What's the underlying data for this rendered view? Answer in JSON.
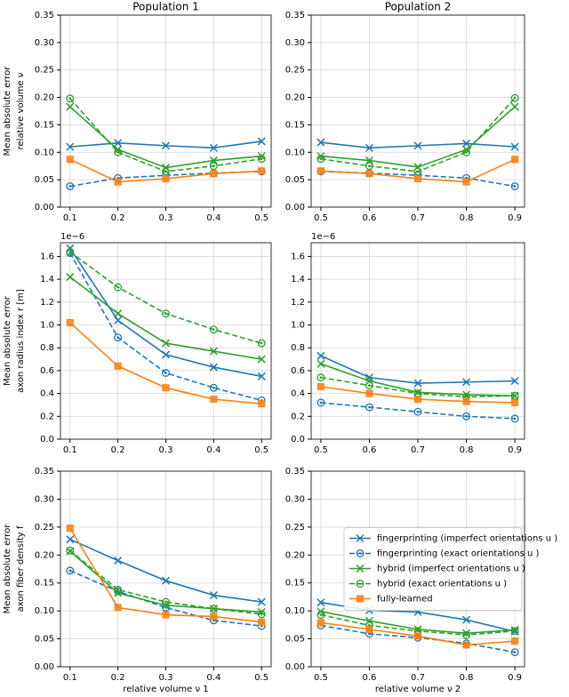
{
  "chart_data": [
    {
      "type": "line",
      "title": "Population 1",
      "ylabel": [
        "Mean absolute error",
        "relative volume ν"
      ],
      "x": [
        0.1,
        0.2,
        0.3,
        0.4,
        0.5
      ],
      "xlim": [
        0.08,
        0.52
      ],
      "xticks": [
        0.1,
        0.2,
        0.3,
        0.4,
        0.5
      ],
      "ylim": [
        0,
        0.35
      ],
      "yticks": [
        {
          "value": 0,
          "label": "0.00"
        },
        0.05,
        {
          "value": 0.1,
          "label": "0.10"
        },
        0.15,
        {
          "value": 0.2,
          "label": "0.20"
        },
        0.25,
        {
          "value": 0.3,
          "label": "0.30"
        },
        0.35
      ],
      "grid": true,
      "series": [
        {
          "color": "#1f77b4",
          "dashed": false,
          "marker": "x",
          "values": [
            0.11,
            0.117,
            0.112,
            0.108,
            0.12
          ]
        },
        {
          "color": "#1f77b4",
          "dashed": true,
          "marker": "o",
          "values": [
            0.038,
            0.053,
            0.058,
            0.062,
            0.065
          ]
        },
        {
          "color": "#2ca02c",
          "dashed": false,
          "marker": "x",
          "values": [
            0.183,
            0.105,
            0.072,
            0.085,
            0.093
          ]
        },
        {
          "color": "#2ca02c",
          "dashed": true,
          "marker": "o",
          "values": [
            0.198,
            0.1,
            0.065,
            0.075,
            0.088
          ]
        },
        {
          "color": "#ff7f0e",
          "dashed": false,
          "marker": "s",
          "values": [
            0.087,
            0.046,
            0.052,
            0.061,
            0.066
          ]
        }
      ]
    },
    {
      "type": "line",
      "title": "Population 2",
      "x": [
        0.5,
        0.6,
        0.7,
        0.8,
        0.9
      ],
      "xlim": [
        0.48,
        0.92
      ],
      "xticks": [
        0.5,
        0.6,
        0.7,
        0.8,
        0.9
      ],
      "ylim": [
        0,
        0.35
      ],
      "yticks": [
        {
          "value": 0,
          "label": "0.00"
        },
        0.05,
        {
          "value": 0.1,
          "label": "0.10"
        },
        0.15,
        {
          "value": 0.2,
          "label": "0.20"
        },
        0.25,
        {
          "value": 0.3,
          "label": "0.30"
        },
        0.35
      ],
      "grid": true,
      "series": [
        {
          "color": "#1f77b4",
          "dashed": false,
          "marker": "x",
          "values": [
            0.118,
            0.108,
            0.112,
            0.116,
            0.11
          ]
        },
        {
          "color": "#1f77b4",
          "dashed": true,
          "marker": "o",
          "values": [
            0.065,
            0.062,
            0.058,
            0.053,
            0.038
          ]
        },
        {
          "color": "#2ca02c",
          "dashed": false,
          "marker": "x",
          "values": [
            0.093,
            0.085,
            0.073,
            0.105,
            0.183
          ]
        },
        {
          "color": "#2ca02c",
          "dashed": true,
          "marker": "o",
          "values": [
            0.088,
            0.075,
            0.065,
            0.1,
            0.199
          ]
        },
        {
          "color": "#ff7f0e",
          "dashed": false,
          "marker": "s",
          "values": [
            0.066,
            0.061,
            0.052,
            0.046,
            0.087
          ]
        }
      ]
    },
    {
      "type": "line",
      "ylabel": [
        "Mean absolute error",
        "axon radius index r [m]"
      ],
      "offset_label": "1e−6",
      "x": [
        0.1,
        0.2,
        0.3,
        0.4,
        0.5
      ],
      "xlim": [
        0.08,
        0.52
      ],
      "xticks": [
        0.1,
        0.2,
        0.3,
        0.4,
        0.5
      ],
      "ylim": [
        0,
        1.72
      ],
      "yticks": [
        {
          "value": 0,
          "label": "0.0"
        },
        0.2,
        0.4,
        0.6,
        0.8,
        {
          "value": 1,
          "label": "1.0"
        },
        1.2,
        1.4,
        1.6
      ],
      "grid": true,
      "series": [
        {
          "color": "#1f77b4",
          "dashed": false,
          "marker": "x",
          "values": [
            1.67,
            1.04,
            0.74,
            0.63,
            0.55
          ]
        },
        {
          "color": "#1f77b4",
          "dashed": true,
          "marker": "o",
          "values": [
            1.63,
            0.89,
            0.58,
            0.45,
            0.34
          ]
        },
        {
          "color": "#2ca02c",
          "dashed": false,
          "marker": "x",
          "values": [
            1.42,
            1.1,
            0.84,
            0.77,
            0.7
          ]
        },
        {
          "color": "#2ca02c",
          "dashed": true,
          "marker": "o",
          "values": [
            1.64,
            1.33,
            1.1,
            0.96,
            0.84
          ]
        },
        {
          "color": "#ff7f0e",
          "dashed": false,
          "marker": "s",
          "values": [
            1.02,
            0.64,
            0.45,
            0.35,
            0.31
          ]
        }
      ]
    },
    {
      "type": "line",
      "offset_label": "1e−6",
      "x": [
        0.5,
        0.6,
        0.7,
        0.8,
        0.9
      ],
      "xlim": [
        0.48,
        0.92
      ],
      "xticks": [
        0.5,
        0.6,
        0.7,
        0.8,
        0.9
      ],
      "ylim": [
        0,
        1.72
      ],
      "yticks": [
        {
          "value": 0,
          "label": "0.0"
        },
        0.2,
        0.4,
        0.6,
        0.8,
        {
          "value": 1,
          "label": "1.0"
        },
        1.2,
        1.4,
        1.6
      ],
      "grid": true,
      "series": [
        {
          "color": "#1f77b4",
          "dashed": false,
          "marker": "x",
          "values": [
            0.73,
            0.54,
            0.49,
            0.5,
            0.51
          ]
        },
        {
          "color": "#1f77b4",
          "dashed": true,
          "marker": "o",
          "values": [
            0.32,
            0.28,
            0.24,
            0.2,
            0.18
          ]
        },
        {
          "color": "#2ca02c",
          "dashed": false,
          "marker": "x",
          "values": [
            0.66,
            0.51,
            0.41,
            0.39,
            0.38
          ]
        },
        {
          "color": "#2ca02c",
          "dashed": true,
          "marker": "o",
          "values": [
            0.54,
            0.47,
            0.4,
            0.37,
            0.38
          ]
        },
        {
          "color": "#ff7f0e",
          "dashed": false,
          "marker": "s",
          "values": [
            0.46,
            0.4,
            0.35,
            0.33,
            0.32
          ]
        }
      ]
    },
    {
      "type": "line",
      "ylabel": [
        "Mean absolute error",
        "axon fiber density f"
      ],
      "xlabel": "relative volume ν 1",
      "x": [
        0.1,
        0.2,
        0.3,
        0.4,
        0.5
      ],
      "xlim": [
        0.08,
        0.52
      ],
      "xticks": [
        0.1,
        0.2,
        0.3,
        0.4,
        0.5
      ],
      "ylim": [
        0,
        0.35
      ],
      "yticks": [
        {
          "value": 0,
          "label": "0.00"
        },
        0.05,
        {
          "value": 0.1,
          "label": "0.10"
        },
        0.15,
        {
          "value": 0.2,
          "label": "0.20"
        },
        0.25,
        {
          "value": 0.3,
          "label": "0.30"
        },
        0.35
      ],
      "grid": true,
      "series": [
        {
          "color": "#1f77b4",
          "dashed": false,
          "marker": "x",
          "values": [
            0.228,
            0.19,
            0.154,
            0.128,
            0.116
          ]
        },
        {
          "color": "#1f77b4",
          "dashed": true,
          "marker": "o",
          "values": [
            0.172,
            0.135,
            0.106,
            0.083,
            0.073
          ]
        },
        {
          "color": "#2ca02c",
          "dashed": false,
          "marker": "x",
          "values": [
            0.207,
            0.132,
            0.11,
            0.104,
            0.098
          ]
        },
        {
          "color": "#2ca02c",
          "dashed": true,
          "marker": "o",
          "values": [
            0.208,
            0.138,
            0.116,
            0.104,
            0.094
          ]
        },
        {
          "color": "#ff7f0e",
          "dashed": false,
          "marker": "s",
          "values": [
            0.248,
            0.106,
            0.093,
            0.09,
            0.08
          ]
        }
      ]
    },
    {
      "type": "line",
      "xlabel": "relative volume ν 2",
      "legend": "center right",
      "x": [
        0.5,
        0.6,
        0.7,
        0.8,
        0.9
      ],
      "xlim": [
        0.48,
        0.92
      ],
      "xticks": [
        0.5,
        0.6,
        0.7,
        0.8,
        0.9
      ],
      "ylim": [
        0,
        0.35
      ],
      "yticks": [
        {
          "value": 0,
          "label": "0.00"
        },
        0.05,
        {
          "value": 0.1,
          "label": "0.10"
        },
        0.15,
        {
          "value": 0.2,
          "label": "0.20"
        },
        0.25,
        {
          "value": 0.3,
          "label": "0.30"
        },
        0.35
      ],
      "grid": true,
      "series": [
        {
          "name": "fingerprinting (imperfect orientations u )",
          "color": "#1f77b4",
          "dashed": false,
          "marker": "x",
          "values": [
            0.115,
            0.101,
            0.098,
            0.084,
            0.063
          ]
        },
        {
          "name": "fingerprinting (exact orientations u )",
          "color": "#1f77b4",
          "dashed": true,
          "marker": "o",
          "values": [
            0.074,
            0.059,
            0.052,
            0.042,
            0.026
          ]
        },
        {
          "name": "hybrid (imperfect orientations u )",
          "color": "#2ca02c",
          "dashed": false,
          "marker": "x",
          "values": [
            0.099,
            0.082,
            0.067,
            0.06,
            0.066
          ]
        },
        {
          "name": "hybrid (exact orientations u )",
          "color": "#2ca02c",
          "dashed": true,
          "marker": "o",
          "values": [
            0.093,
            0.074,
            0.064,
            0.057,
            0.064
          ]
        },
        {
          "name": "fully-learned",
          "color": "#ff7f0e",
          "dashed": false,
          "marker": "s",
          "values": [
            0.079,
            0.067,
            0.055,
            0.039,
            0.046
          ]
        }
      ]
    }
  ]
}
